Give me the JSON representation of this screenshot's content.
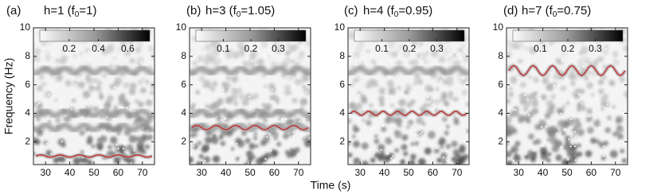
{
  "ylabel": "Frequency (Hz)",
  "xlabel": "Time (s)",
  "chart_data": [
    {
      "type": "line",
      "label": "(a)",
      "title": [
        "h=1 (f",
        "0",
        "=1)"
      ],
      "xlim": [
        25,
        75
      ],
      "xticks": [
        30,
        40,
        50,
        60,
        70
      ],
      "ylim": [
        0.4,
        10
      ],
      "yticks": [
        2,
        4,
        6,
        8,
        10
      ],
      "clim": [
        0,
        0.75
      ],
      "cticks": [
        0.2,
        0.4,
        0.6
      ],
      "bands": [
        3,
        4,
        7
      ],
      "series": [
        {
          "color": "#c0393b",
          "x": [
            26,
            27,
            28,
            29,
            30,
            31,
            32,
            33,
            34,
            35,
            36,
            37,
            38,
            39,
            40,
            41,
            42,
            43,
            44,
            45,
            46,
            47,
            48,
            49,
            50,
            51,
            52,
            53,
            54,
            55,
            56,
            57,
            58,
            59,
            60,
            61,
            62,
            63,
            64,
            65,
            66,
            67,
            68,
            69,
            70,
            71,
            72,
            73,
            74
          ],
          "values": [
            1,
            1.06,
            1.08,
            1.06,
            1,
            0.94,
            0.92,
            0.94,
            1,
            1.06,
            1.08,
            1.06,
            1,
            0.94,
            0.92,
            0.94,
            1,
            1.06,
            1.08,
            1.06,
            1,
            0.94,
            0.92,
            0.94,
            1,
            1.06,
            1.08,
            1.06,
            1,
            0.94,
            0.92,
            0.94,
            1,
            1.06,
            1.08,
            1.06,
            1,
            0.94,
            0.92,
            0.94,
            1,
            1.06,
            1.08,
            1.06,
            1,
            0.94,
            0.92,
            0.94,
            1
          ]
        }
      ]
    },
    {
      "type": "line",
      "label": "(b)",
      "title": [
        "h=3 (f",
        "0",
        "=1.05)"
      ],
      "xlim": [
        25,
        75
      ],
      "xticks": [
        30,
        40,
        50,
        60,
        70
      ],
      "ylim": [
        0.4,
        10
      ],
      "yticks": [
        2,
        4,
        6,
        8,
        10
      ],
      "clim": [
        0,
        0.4
      ],
      "cticks": [
        0.1,
        0.2,
        0.3
      ],
      "bands": [
        3,
        4,
        7
      ],
      "series": [
        {
          "color": "#c0393b",
          "x": [
            26,
            27,
            28,
            29,
            30,
            31,
            32,
            33,
            34,
            35,
            36,
            37,
            38,
            39,
            40,
            41,
            42,
            43,
            44,
            45,
            46,
            47,
            48,
            49,
            50,
            51,
            52,
            53,
            54,
            55,
            56,
            57,
            58,
            59,
            60,
            61,
            62,
            63,
            64,
            65,
            66,
            67,
            68,
            69,
            70,
            71,
            72,
            73,
            74
          ],
          "values": [
            3,
            3.11,
            3.15,
            3.11,
            3,
            2.89,
            2.85,
            2.89,
            3,
            3.11,
            3.15,
            3.11,
            3,
            2.89,
            2.85,
            2.89,
            3,
            3.11,
            3.15,
            3.11,
            3,
            2.89,
            2.85,
            2.89,
            3,
            3.11,
            3.15,
            3.11,
            3,
            2.89,
            2.85,
            2.89,
            3,
            3.11,
            3.15,
            3.11,
            3,
            2.89,
            2.85,
            2.89,
            3,
            3.11,
            3.15,
            3.11,
            3,
            2.89,
            2.85,
            2.89,
            3
          ]
        }
      ]
    },
    {
      "type": "line",
      "label": "(c)",
      "title": [
        "h=4 (f",
        "0",
        "=0.95)"
      ],
      "xlim": [
        25,
        75
      ],
      "xticks": [
        30,
        40,
        50,
        60,
        70
      ],
      "ylim": [
        0.4,
        10
      ],
      "yticks": [
        2,
        4,
        6,
        8,
        10
      ],
      "clim": [
        0,
        0.4
      ],
      "cticks": [
        0.1,
        0.2,
        0.3
      ],
      "bands": [
        7
      ],
      "series": [
        {
          "color": "#c0393b",
          "x": [
            26,
            27,
            28,
            29,
            30,
            31,
            32,
            33,
            34,
            35,
            36,
            37,
            38,
            39,
            40,
            41,
            42,
            43,
            44,
            45,
            46,
            47,
            48,
            49,
            50,
            51,
            52,
            53,
            54,
            55,
            56,
            57,
            58,
            59,
            60,
            61,
            62,
            63,
            64,
            65,
            66,
            67,
            68,
            69,
            70,
            71,
            72,
            73,
            74
          ],
          "values": [
            4,
            4.13,
            4.13,
            4,
            3.87,
            3.87,
            4,
            4.13,
            4.13,
            4,
            3.87,
            3.87,
            4,
            4.13,
            4.13,
            4,
            3.87,
            3.87,
            4,
            4.13,
            4.13,
            4,
            3.87,
            3.87,
            4,
            4.13,
            4.13,
            4,
            3.87,
            3.87,
            4,
            4.13,
            4.13,
            4,
            3.87,
            3.87,
            4,
            4.13,
            4.13,
            4,
            3.87,
            3.87,
            4,
            4.13,
            4.13,
            4,
            3.87,
            3.87,
            4
          ]
        }
      ]
    },
    {
      "type": "line",
      "label": "(d)",
      "title": [
        "h=7 (f",
        "0",
        "=0.75)"
      ],
      "xlim": [
        25,
        75
      ],
      "xticks": [
        30,
        40,
        50,
        60,
        70
      ],
      "ylim": [
        0.4,
        10
      ],
      "yticks": [
        2,
        4,
        6,
        8,
        10
      ],
      "clim": [
        0,
        0.4
      ],
      "cticks": [
        0.1,
        0.2,
        0.3
      ],
      "series": [
        {
          "color": "#c0393b",
          "x": [
            26,
            27,
            28,
            29,
            30,
            31,
            32,
            33,
            34,
            35,
            36,
            37,
            38,
            39,
            40,
            41,
            42,
            43,
            44,
            45,
            46,
            47,
            48,
            49,
            50,
            51,
            52,
            53,
            54,
            55,
            56,
            57,
            58,
            59,
            60,
            61,
            62,
            63,
            64,
            65,
            66,
            67,
            68,
            69,
            70,
            71,
            72,
            73,
            74
          ],
          "values": [
            7,
            7.25,
            7.35,
            7.25,
            7,
            6.75,
            6.65,
            6.75,
            7,
            7.25,
            7.35,
            7.25,
            7,
            6.75,
            6.65,
            6.75,
            7,
            7.25,
            7.35,
            7.25,
            7,
            6.75,
            6.65,
            6.75,
            7,
            7.25,
            7.35,
            7.25,
            7,
            6.75,
            6.65,
            6.75,
            7,
            7.25,
            7.35,
            7.25,
            7,
            6.75,
            6.65,
            6.75,
            7,
            7.25,
            7.35,
            7.25,
            7,
            6.75,
            6.65,
            6.75,
            7
          ]
        }
      ]
    }
  ]
}
